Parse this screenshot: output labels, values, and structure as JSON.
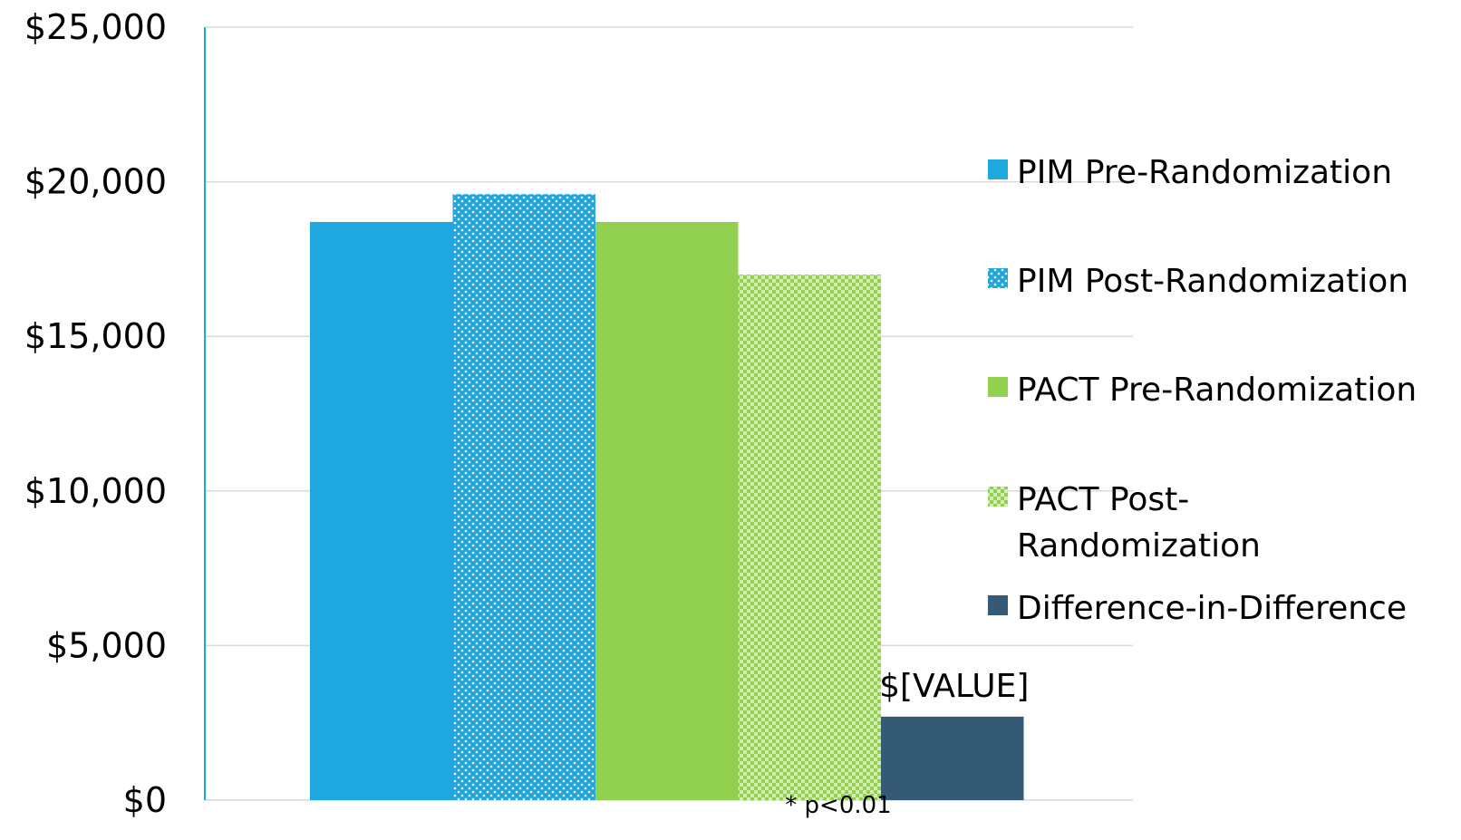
{
  "chart_data": {
    "type": "bar",
    "y_tick_labels": [
      "$0",
      "$5,000",
      "$10,000",
      "$15,000",
      "$20,000",
      "$25,000"
    ],
    "ylim": [
      0,
      25000
    ],
    "grid": true,
    "legend_position": "right",
    "footnote": "* p<0.01",
    "series": [
      {
        "name": "PIM Pre-Randomization",
        "values": [
          18700
        ],
        "color": "#1FA8E0",
        "pattern": "solid"
      },
      {
        "name": "PIM Post-Randomization",
        "values": [
          19600
        ],
        "color": "#1FA8E0",
        "pattern": "dots"
      },
      {
        "name": "PACT Pre-Randomization",
        "values": [
          18700
        ],
        "color": "#92D050",
        "pattern": "solid"
      },
      {
        "name": "PACT Post-Randomization",
        "values": [
          17000
        ],
        "color": "#92D050",
        "pattern": "checker"
      },
      {
        "name": "Difference-in-Difference",
        "values": [
          2700
        ],
        "color": "#345A75",
        "pattern": "solid",
        "data_label": "$[VALUE]"
      }
    ],
    "legend_lines": [
      [
        "PIM Pre-Randomization"
      ],
      [
        "PIM Post-Randomization"
      ],
      [
        "PACT Pre-Randomization"
      ],
      [
        "PACT Post-",
        "Randomization"
      ],
      [
        "Difference-in-Difference"
      ]
    ]
  }
}
